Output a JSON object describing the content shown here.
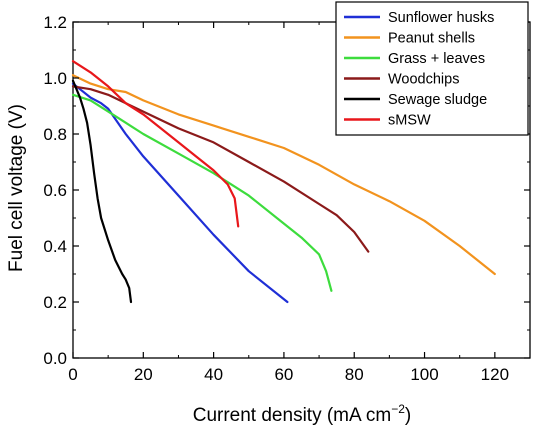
{
  "chart_data": {
    "type": "line",
    "xlabel": "Current density (mA cm",
    "xlabel_unit_exponent": "−2",
    "xlabel_close": ")",
    "ylabel": "Fuel cell voltage (V)",
    "xlim": [
      0,
      130
    ],
    "ylim": [
      0.0,
      1.2
    ],
    "x_ticks": [
      0,
      20,
      40,
      60,
      80,
      100,
      120
    ],
    "x_tick_labels": [
      "0",
      "20",
      "40",
      "60",
      "80",
      "100",
      "120"
    ],
    "y_ticks": [
      0.0,
      0.2,
      0.4,
      0.6,
      0.8,
      1.0,
      1.2
    ],
    "y_tick_labels": [
      "0.0",
      "0.2",
      "0.4",
      "0.6",
      "0.8",
      "1.0",
      "1.2"
    ],
    "grid": false,
    "legend_position": "top-right",
    "series": [
      {
        "name": "Sunflower husks",
        "color": "#1f2fd6",
        "x": [
          0,
          2,
          5,
          8,
          10,
          15,
          20,
          30,
          40,
          50,
          61
        ],
        "y": [
          0.98,
          0.96,
          0.93,
          0.91,
          0.89,
          0.8,
          0.72,
          0.58,
          0.44,
          0.31,
          0.2
        ]
      },
      {
        "name": "Peanut shells",
        "color": "#f2931e",
        "x": [
          0,
          5,
          10,
          15,
          20,
          30,
          40,
          50,
          60,
          70,
          80,
          90,
          100,
          110,
          120
        ],
        "y": [
          1.01,
          0.98,
          0.96,
          0.95,
          0.92,
          0.87,
          0.83,
          0.79,
          0.75,
          0.69,
          0.62,
          0.56,
          0.49,
          0.4,
          0.3
        ]
      },
      {
        "name": "Grass + leaves",
        "color": "#3ddc3d",
        "x": [
          0,
          5,
          10,
          20,
          30,
          40,
          50,
          60,
          65,
          70,
          72,
          73.5
        ],
        "y": [
          0.94,
          0.92,
          0.88,
          0.8,
          0.73,
          0.66,
          0.58,
          0.48,
          0.43,
          0.37,
          0.31,
          0.24
        ]
      },
      {
        "name": "Woodchips",
        "color": "#8b1a1a",
        "x": [
          0,
          5,
          10,
          20,
          30,
          40,
          50,
          60,
          70,
          75,
          80,
          84
        ],
        "y": [
          0.97,
          0.96,
          0.94,
          0.88,
          0.82,
          0.77,
          0.7,
          0.63,
          0.55,
          0.51,
          0.45,
          0.38
        ]
      },
      {
        "name": "Sewage sludge",
        "color": "#000000",
        "x": [
          0,
          1,
          2,
          3,
          4,
          5,
          6,
          7,
          8,
          10,
          12,
          14,
          15,
          16,
          16.5
        ],
        "y": [
          0.99,
          0.96,
          0.93,
          0.89,
          0.84,
          0.76,
          0.66,
          0.57,
          0.5,
          0.42,
          0.35,
          0.3,
          0.28,
          0.25,
          0.2
        ]
      },
      {
        "name": "sMSW",
        "color": "#e8171b",
        "x": [
          0,
          5,
          10,
          15,
          20,
          25,
          30,
          35,
          40,
          44,
          46,
          47
        ],
        "y": [
          1.06,
          1.02,
          0.97,
          0.91,
          0.87,
          0.82,
          0.77,
          0.72,
          0.67,
          0.62,
          0.57,
          0.47
        ]
      }
    ]
  }
}
